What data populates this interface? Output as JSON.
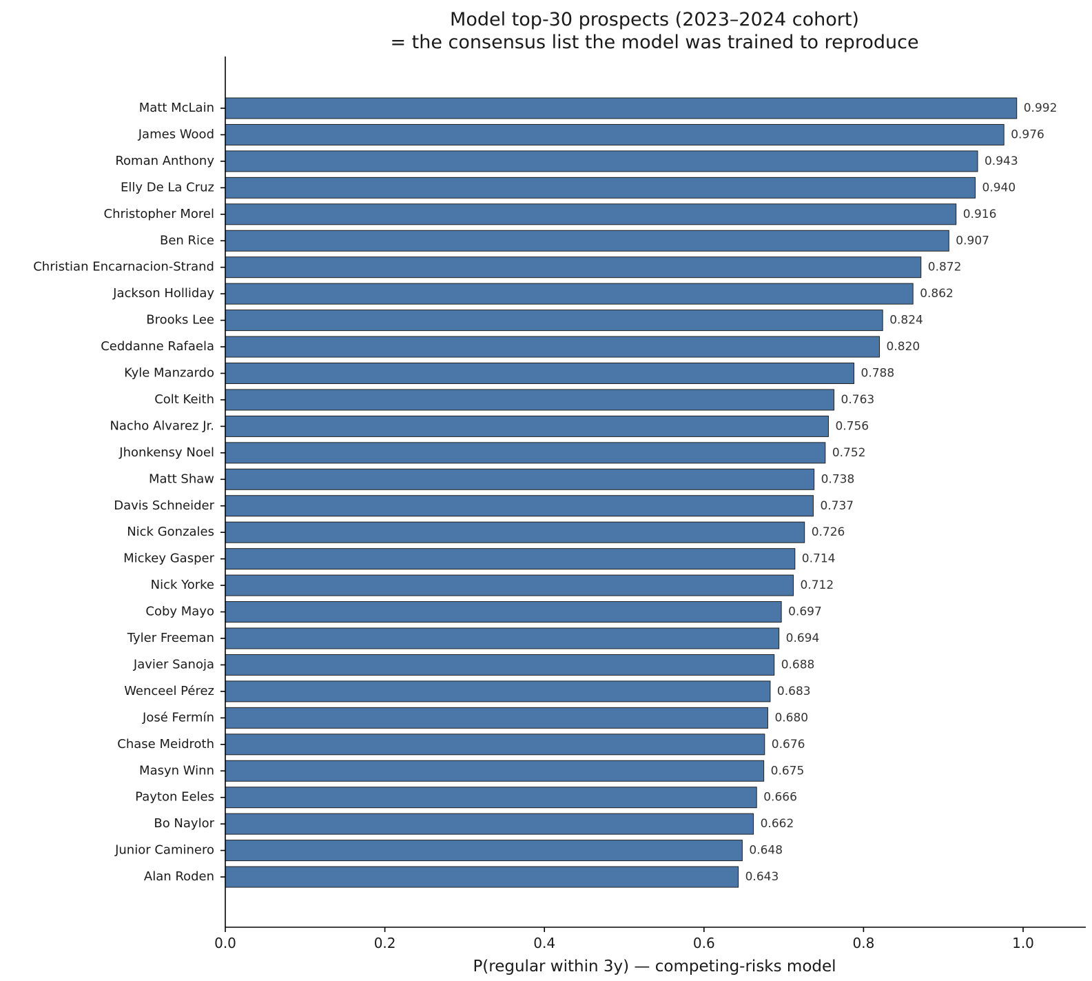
{
  "colors": {
    "bar": "#4a77a8"
  },
  "chart_data": {
    "type": "bar",
    "orientation": "horizontal",
    "title": [
      "Model top-30 prospects (2023–2024 cohort)",
      "= the consensus list the model was trained to reproduce"
    ],
    "xlabel": "P(regular within 3y) — competing-risks model",
    "ylabel": "",
    "xlim": [
      0,
      1.08
    ],
    "xticks": [
      0.0,
      0.2,
      0.4,
      0.6,
      0.8,
      1.0
    ],
    "xtick_labels": [
      "0.0",
      "0.2",
      "0.4",
      "0.6",
      "0.8",
      "1.0"
    ],
    "grid": false,
    "categories": [
      "Matt McLain",
      "James Wood",
      "Roman Anthony",
      "Elly De La Cruz",
      "Christopher Morel",
      "Ben Rice",
      "Christian Encarnacion-Strand",
      "Jackson Holliday",
      "Brooks Lee",
      "Ceddanne Rafaela",
      "Kyle Manzardo",
      "Colt Keith",
      "Nacho Alvarez Jr.",
      "Jhonkensy Noel",
      "Matt Shaw",
      "Davis Schneider",
      "Nick Gonzales",
      "Mickey Gasper",
      "Nick Yorke",
      "Coby Mayo",
      "Tyler Freeman",
      "Javier Sanoja",
      "Wenceel Pérez",
      "José Fermín",
      "Chase Meidroth",
      "Masyn Winn",
      "Payton Eeles",
      "Bo Naylor",
      "Junior Caminero",
      "Alan Roden"
    ],
    "values": [
      0.992,
      0.976,
      0.943,
      0.94,
      0.916,
      0.907,
      0.872,
      0.862,
      0.824,
      0.82,
      0.788,
      0.763,
      0.756,
      0.752,
      0.738,
      0.737,
      0.726,
      0.714,
      0.712,
      0.697,
      0.694,
      0.688,
      0.683,
      0.68,
      0.676,
      0.675,
      0.666,
      0.662,
      0.648,
      0.643
    ],
    "value_labels": [
      "0.992",
      "0.976",
      "0.943",
      "0.940",
      "0.916",
      "0.907",
      "0.872",
      "0.862",
      "0.824",
      "0.820",
      "0.788",
      "0.763",
      "0.756",
      "0.752",
      "0.738",
      "0.737",
      "0.726",
      "0.714",
      "0.712",
      "0.697",
      "0.694",
      "0.688",
      "0.683",
      "0.680",
      "0.676",
      "0.675",
      "0.666",
      "0.662",
      "0.648",
      "0.643"
    ]
  }
}
